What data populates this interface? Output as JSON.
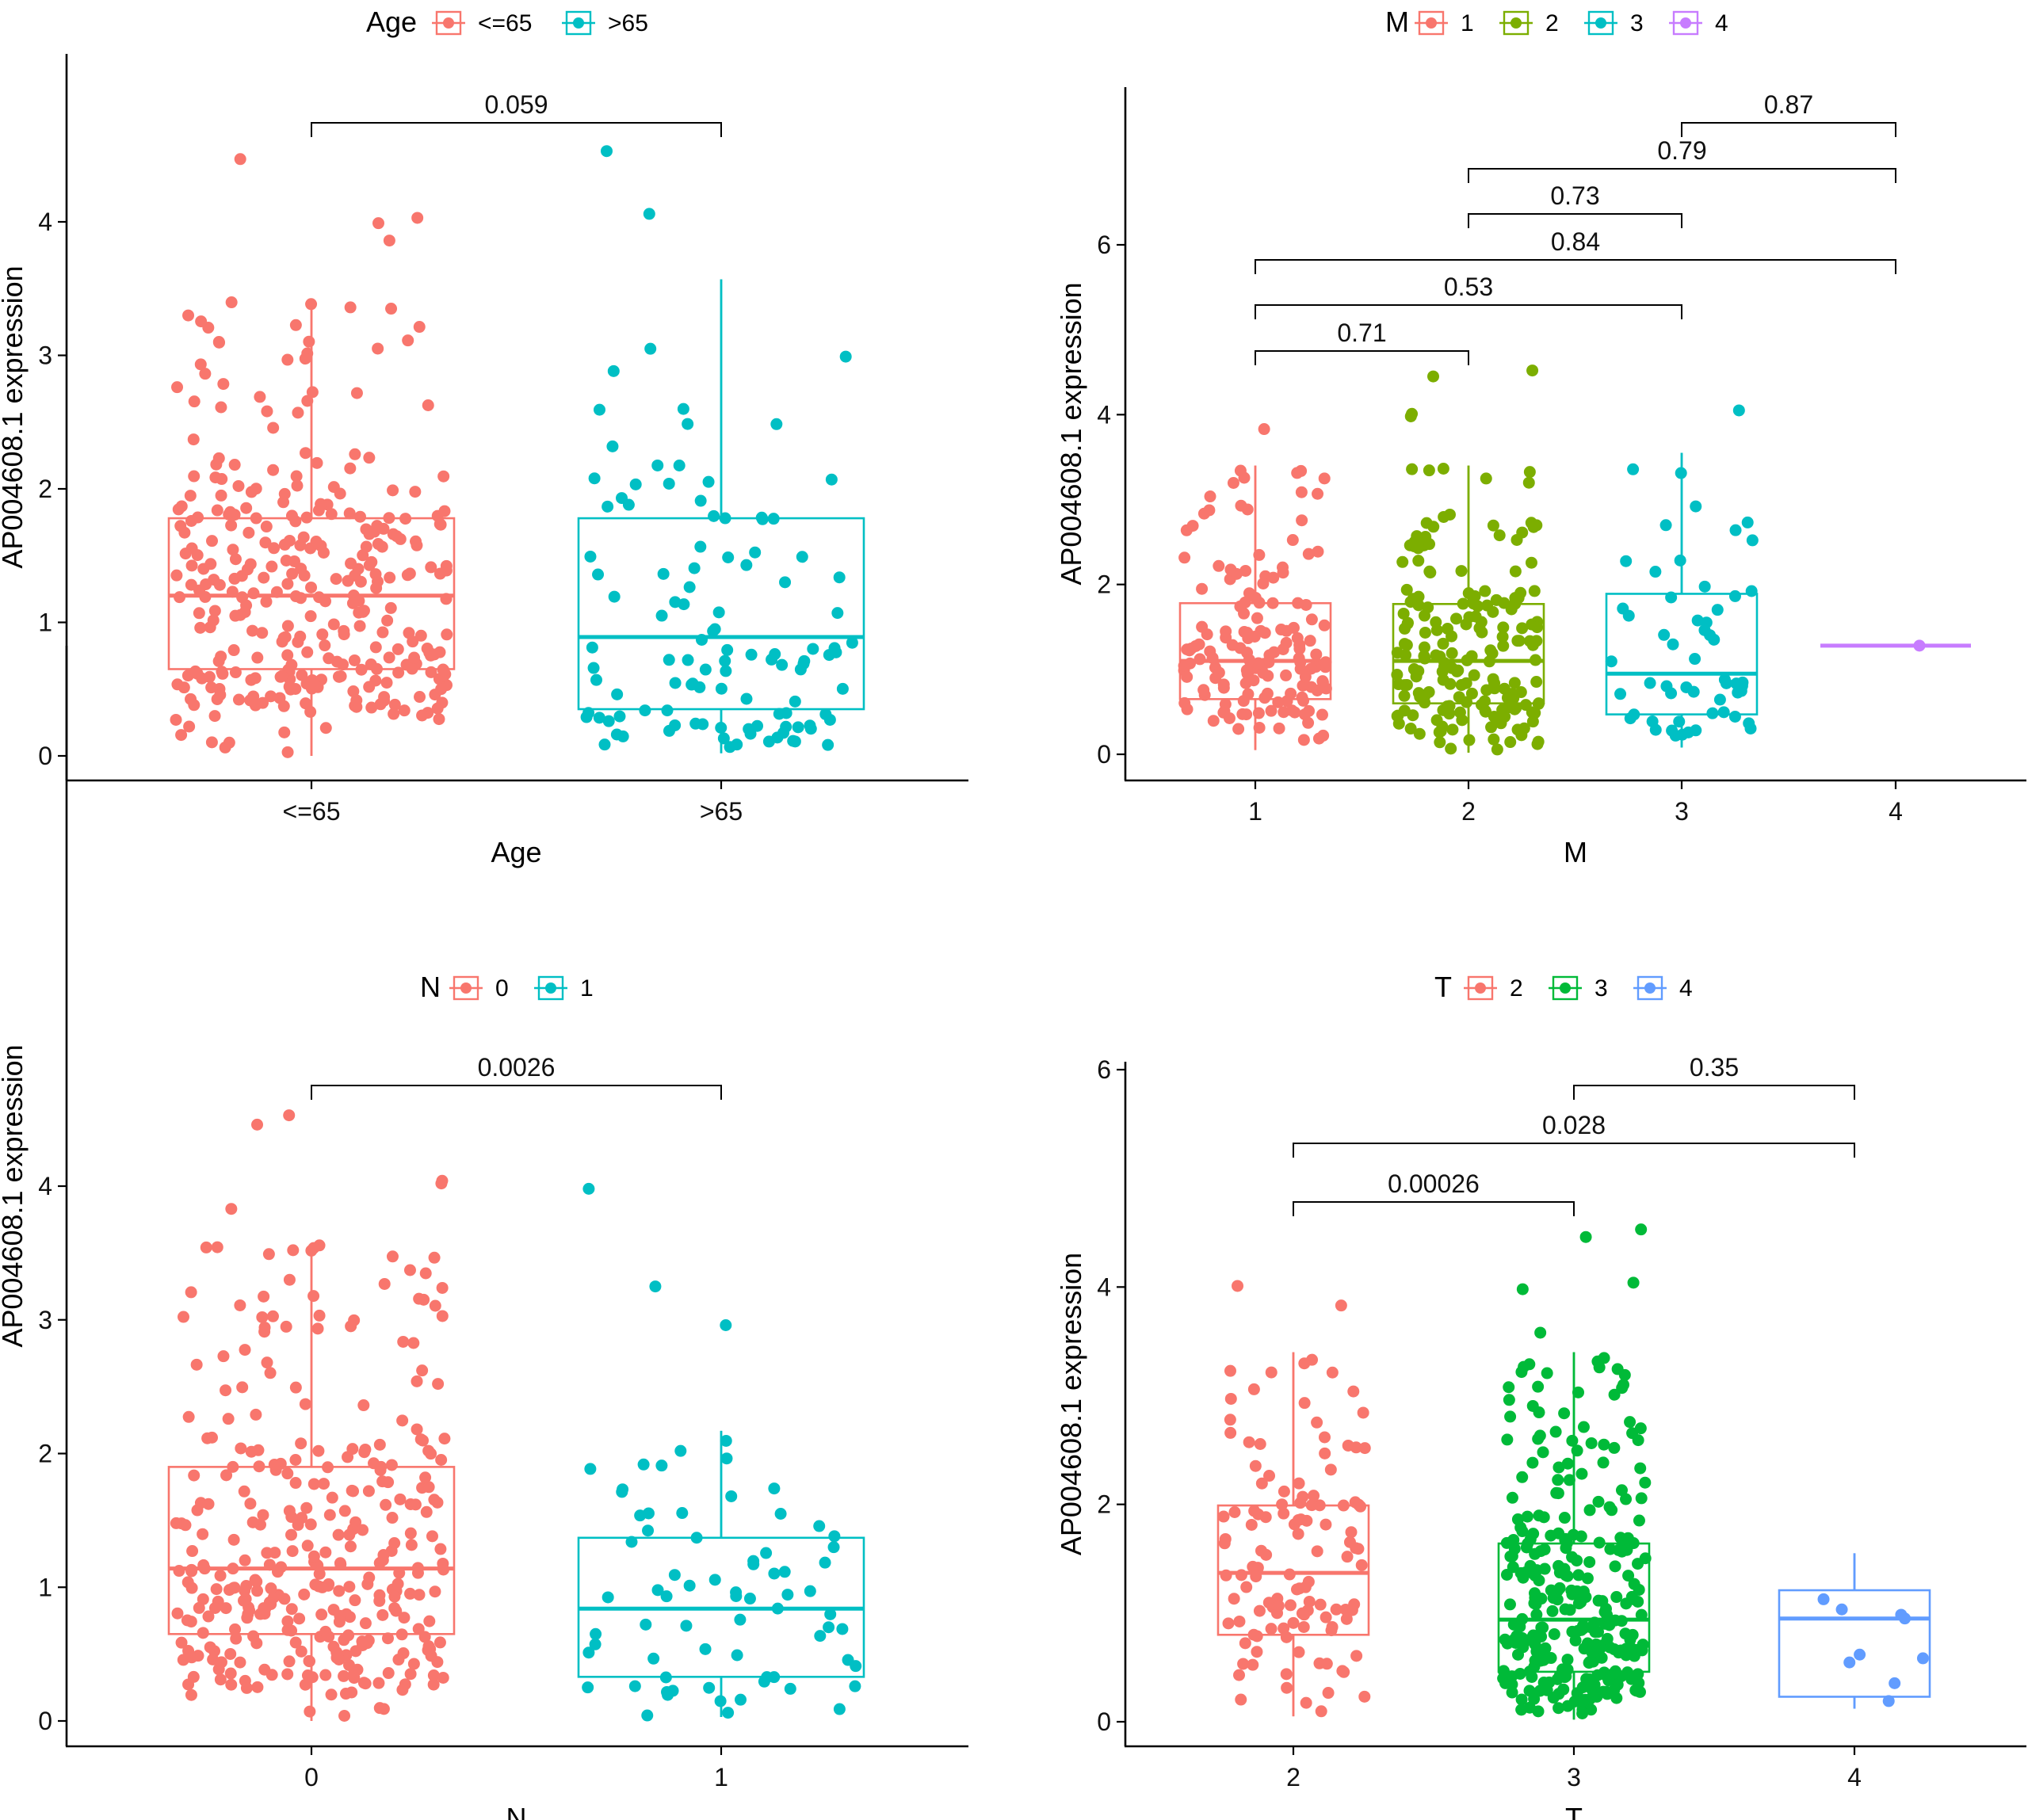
{
  "y_axis_label": "AP004608.1 expression",
  "chart_data": [
    {
      "id": "age",
      "type": "box",
      "xlabel": "Age",
      "ylabel": "AP004608.1 expression",
      "legend_title": "Age",
      "legend_position": "top",
      "ylim": [
        -0.15,
        4.85
      ],
      "yticks": [
        0,
        1,
        2,
        3,
        4
      ],
      "groups": [
        {
          "label": "<=65",
          "color": "#F8766D",
          "min": 0.0,
          "q1": 0.65,
          "median": 1.2,
          "q3": 1.78,
          "max": 3.4,
          "n": 320,
          "outliers": [
            4.47,
            4.03,
            3.99,
            3.86
          ]
        },
        {
          "label": ">65",
          "color": "#00BFC4",
          "min": 0.02,
          "q1": 0.35,
          "median": 0.89,
          "q3": 1.78,
          "max": 3.57,
          "n": 110,
          "outliers": [
            4.53,
            4.06
          ]
        }
      ],
      "comparisons": [
        {
          "from": "<=65",
          "to": ">65",
          "p": "0.059"
        }
      ]
    },
    {
      "id": "m",
      "type": "box",
      "xlabel": "M",
      "ylabel": "AP004608.1 expression",
      "legend_title": "M",
      "legend_position": "top",
      "ylim": [
        -0.2,
        7.8
      ],
      "yticks": [
        0,
        2,
        4,
        6
      ],
      "groups": [
        {
          "label": "1",
          "color": "#F8766D",
          "min": 0.05,
          "q1": 0.65,
          "median": 1.1,
          "q3": 1.78,
          "max": 3.4,
          "n": 150,
          "outliers": [
            3.83
          ]
        },
        {
          "label": "2",
          "color": "#7CAE00",
          "min": 0.02,
          "q1": 0.6,
          "median": 1.1,
          "q3": 1.77,
          "max": 3.4,
          "n": 190,
          "outliers": [
            4.52,
            4.45,
            4.01,
            3.98
          ]
        },
        {
          "label": "3",
          "color": "#00BFC4",
          "min": 0.08,
          "q1": 0.47,
          "median": 0.95,
          "q3": 1.89,
          "max": 3.55,
          "n": 55,
          "outliers": [
            4.05
          ]
        },
        {
          "label": "4",
          "color": "#C77CFF",
          "min": 1.28,
          "q1": 1.28,
          "median": 1.28,
          "q3": 1.28,
          "max": 1.28,
          "n": 1,
          "outliers": []
        }
      ],
      "comparisons": [
        {
          "from": "1",
          "to": "2",
          "p": "0.71"
        },
        {
          "from": "1",
          "to": "3",
          "p": "0.53"
        },
        {
          "from": "1",
          "to": "4",
          "p": "0.84"
        },
        {
          "from": "2",
          "to": "3",
          "p": "0.73"
        },
        {
          "from": "2",
          "to": "4",
          "p": "0.79"
        },
        {
          "from": "3",
          "to": "4",
          "p": "0.87"
        }
      ]
    },
    {
      "id": "n",
      "type": "box",
      "xlabel": "N",
      "ylabel": "AP004608.1 expression",
      "legend_title": "N",
      "legend_position": "top",
      "ylim": [
        -0.15,
        4.85
      ],
      "yticks": [
        0,
        1,
        2,
        3,
        4
      ],
      "groups": [
        {
          "label": "0",
          "color": "#F8766D",
          "min": 0.0,
          "q1": 0.65,
          "median": 1.14,
          "q3": 1.9,
          "max": 3.57,
          "n": 330,
          "outliers": [
            4.53,
            4.46,
            4.04,
            4.02,
            3.83
          ]
        },
        {
          "label": "1",
          "color": "#00BFC4",
          "min": 0.03,
          "q1": 0.33,
          "median": 0.84,
          "q3": 1.37,
          "max": 2.17,
          "n": 70,
          "outliers": [
            3.98,
            3.25,
            2.96
          ]
        }
      ],
      "comparisons": [
        {
          "from": "0",
          "to": "1",
          "p": "0.0026"
        }
      ]
    },
    {
      "id": "t",
      "type": "box",
      "xlabel": "T",
      "ylabel": "AP004608.1 expression",
      "legend_title": "T",
      "legend_position": "top",
      "ylim": [
        -0.2,
        6.2
      ],
      "yticks": [
        0,
        2,
        4,
        6
      ],
      "groups": [
        {
          "label": "2",
          "color": "#F8766D",
          "min": 0.05,
          "q1": 0.8,
          "median": 1.37,
          "q3": 1.99,
          "max": 3.4,
          "n": 120,
          "outliers": [
            4.01,
            3.83
          ]
        },
        {
          "label": "3",
          "color": "#00BA38",
          "min": 0.02,
          "q1": 0.46,
          "median": 0.94,
          "q3": 1.64,
          "max": 3.4,
          "n": 300,
          "outliers": [
            4.53,
            4.46,
            4.04,
            3.98,
            3.58
          ]
        },
        {
          "label": "4",
          "color": "#619CFF",
          "min": 0.12,
          "q1": 0.23,
          "median": 0.95,
          "q3": 1.21,
          "max": 1.55,
          "n": 9,
          "outliers": []
        }
      ],
      "comparisons": [
        {
          "from": "2",
          "to": "3",
          "p": "0.00026"
        },
        {
          "from": "2",
          "to": "4",
          "p": "0.028"
        },
        {
          "from": "3",
          "to": "4",
          "p": "0.35"
        }
      ]
    }
  ]
}
